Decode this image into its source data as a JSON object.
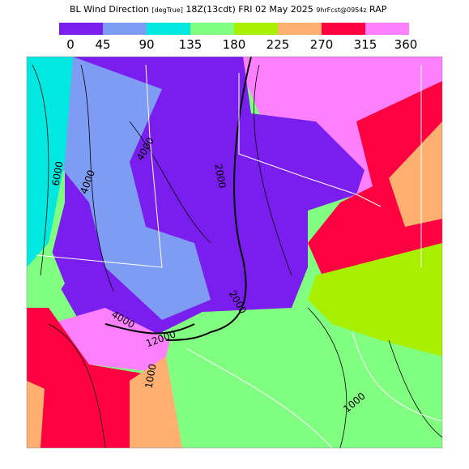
{
  "header": {
    "title": "BL Wind Direction",
    "units": "[degTrue]",
    "time": "18Z(13cdt) FRI 02 May 2025",
    "forecast": "9hrFcst@0954z",
    "model": "RAP"
  },
  "colorbar": {
    "labels": [
      0,
      45,
      90,
      135,
      180,
      225,
      270,
      315,
      360
    ],
    "colors": [
      "#7a1ef0",
      "#7f9cf5",
      "#00e8e0",
      "#80ff80",
      "#a8f000",
      "#ffb070",
      "#ff0040",
      "#ff80ff"
    ]
  },
  "contour_labels": [
    "6000",
    "4000",
    "4000",
    "2000",
    "2000",
    "4000",
    "12000",
    "1000",
    "1000"
  ]
}
